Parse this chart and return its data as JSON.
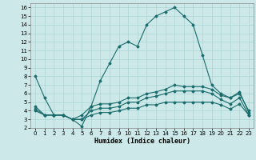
{
  "xlabel": "Humidex (Indice chaleur)",
  "bg_color": "#cce8e8",
  "grid_color": "#aad4d4",
  "line_color": "#1a6b6b",
  "xlim": [
    -0.5,
    23.5
  ],
  "ylim": [
    2,
    16.5
  ],
  "xticks": [
    0,
    1,
    2,
    3,
    4,
    5,
    6,
    7,
    8,
    9,
    10,
    11,
    12,
    13,
    14,
    15,
    16,
    17,
    18,
    19,
    20,
    21,
    22,
    23
  ],
  "yticks": [
    2,
    3,
    4,
    5,
    6,
    7,
    8,
    9,
    10,
    11,
    12,
    13,
    14,
    15,
    16
  ],
  "series": [
    [
      8.0,
      5.5,
      3.5,
      3.5,
      3.0,
      2.2,
      4.5,
      7.5,
      9.5,
      11.5,
      12.0,
      11.5,
      14.0,
      15.0,
      15.5,
      16.0,
      15.0,
      14.0,
      10.5,
      7.0,
      6.0,
      5.5,
      6.0,
      4.0
    ],
    [
      4.5,
      3.5,
      3.5,
      3.5,
      3.0,
      3.5,
      4.5,
      4.8,
      4.8,
      5.0,
      5.5,
      5.5,
      6.0,
      6.2,
      6.5,
      7.0,
      6.8,
      6.8,
      6.8,
      6.5,
      5.8,
      5.5,
      6.2,
      3.8
    ],
    [
      4.2,
      3.5,
      3.5,
      3.5,
      3.0,
      3.0,
      4.0,
      4.3,
      4.3,
      4.5,
      5.0,
      5.0,
      5.5,
      5.7,
      6.0,
      6.3,
      6.3,
      6.3,
      6.3,
      6.0,
      5.3,
      4.8,
      5.5,
      3.5
    ],
    [
      4.0,
      3.5,
      3.5,
      3.5,
      3.0,
      3.0,
      3.5,
      3.8,
      3.8,
      4.0,
      4.3,
      4.3,
      4.7,
      4.7,
      5.0,
      5.0,
      5.0,
      5.0,
      5.0,
      5.0,
      4.7,
      4.2,
      4.8,
      3.5
    ]
  ]
}
